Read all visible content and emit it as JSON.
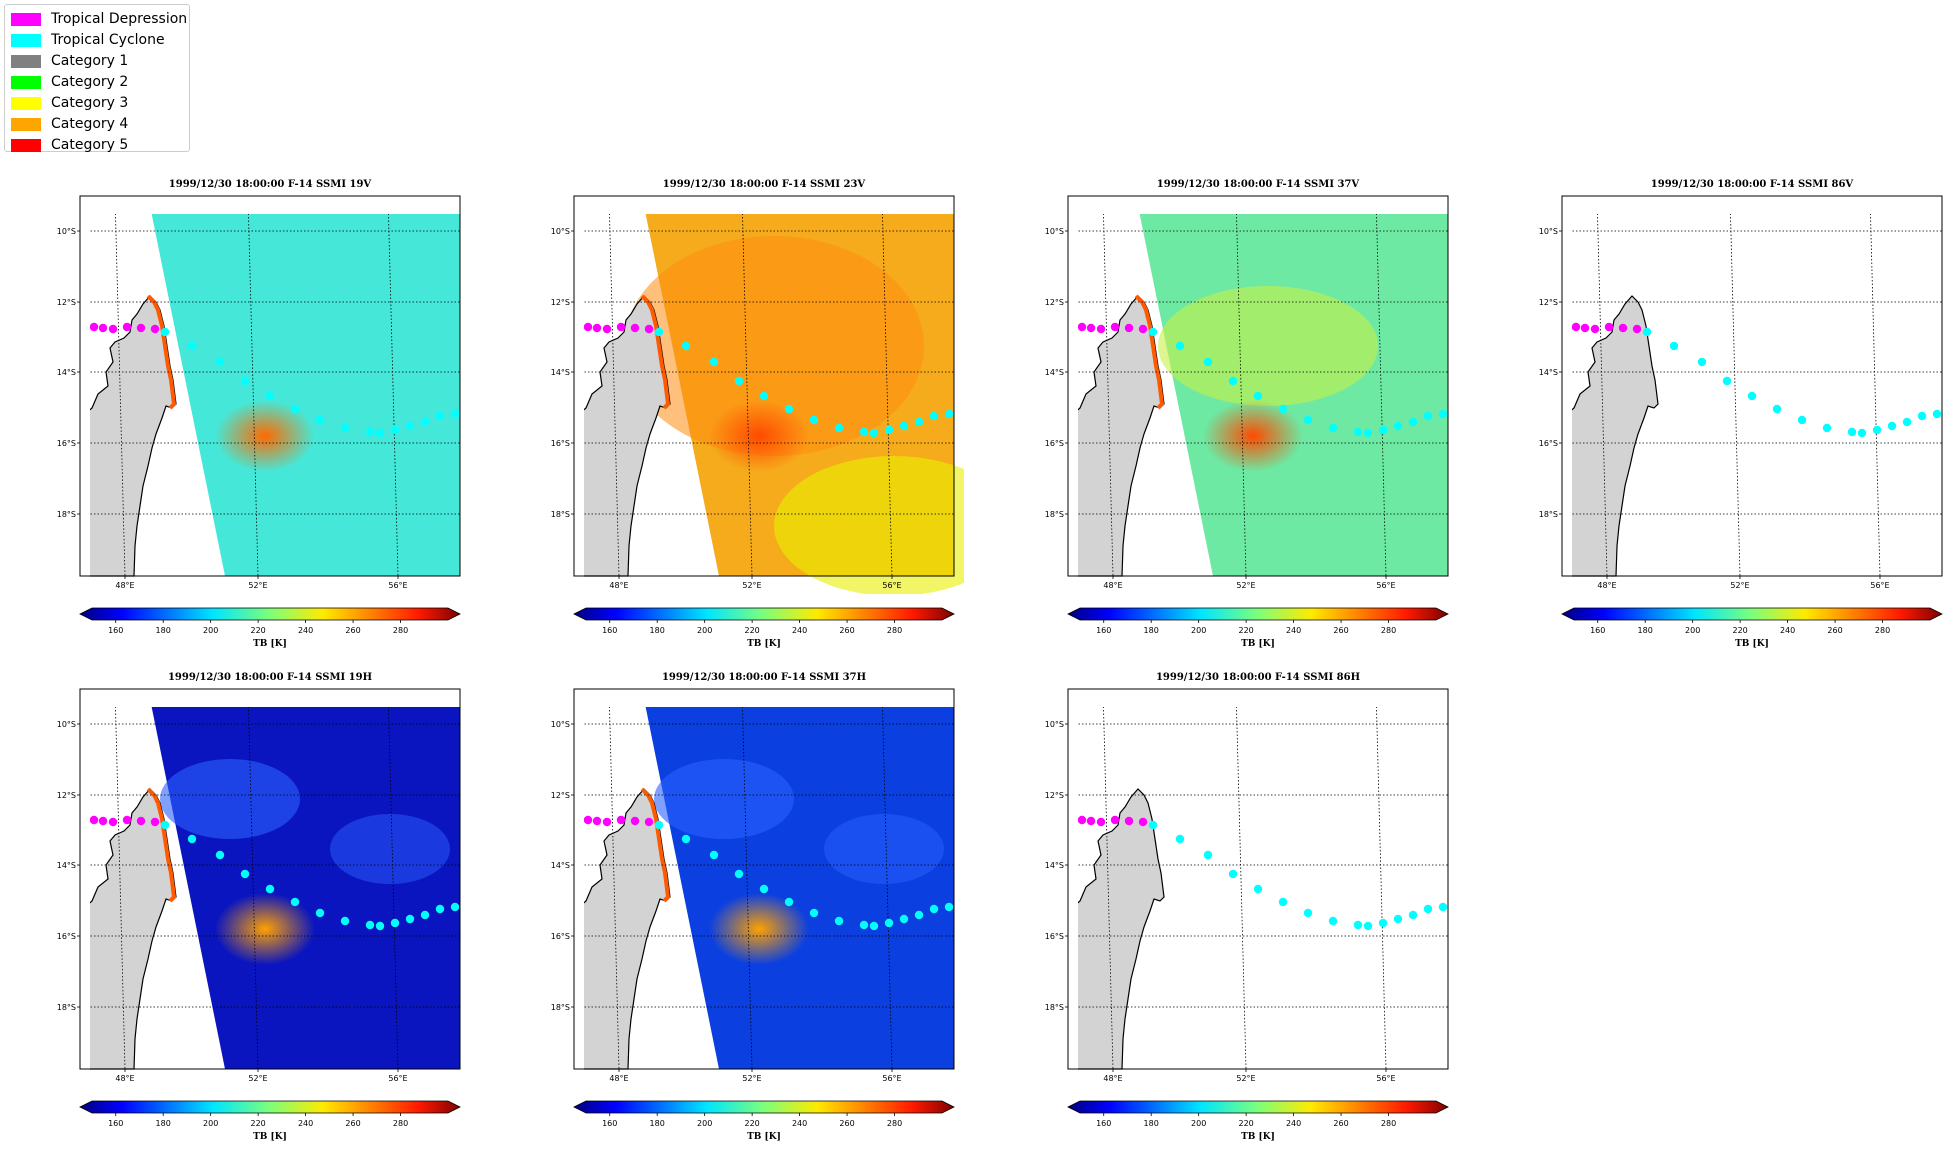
{
  "legend": {
    "items": [
      {
        "label": "Tropical Depression",
        "color": "#ff00ff"
      },
      {
        "label": "Tropical Cyclone",
        "color": "#00ffff"
      },
      {
        "label": "Category 1",
        "color": "#808080"
      },
      {
        "label": "Category 2",
        "color": "#00ff00"
      },
      {
        "label": "Category 3",
        "color": "#ffff00"
      },
      {
        "label": "Category 4",
        "color": "#ffa500"
      },
      {
        "label": "Category 5",
        "color": "#ff0000"
      }
    ]
  },
  "lat_ticks": [
    "10°S",
    "12°S",
    "14°S",
    "16°S",
    "18°S"
  ],
  "lon_ticks": [
    "48°E",
    "52°E",
    "56°E"
  ],
  "colorbar": {
    "ticks": [
      "160",
      "180",
      "200",
      "220",
      "240",
      "260",
      "280"
    ],
    "label": "TB [K]",
    "range": [
      150,
      300
    ]
  },
  "panels": [
    {
      "title": "1999/12/30 18:00:00  F-14 SSMI 19V",
      "field": "c19v"
    },
    {
      "title": "1999/12/30 18:00:00  F-14 SSMI 23V",
      "field": "c23v"
    },
    {
      "title": "1999/12/30 18:00:00  F-14 SSMI 37V",
      "field": "c37v"
    },
    {
      "title": "1999/12/30 18:00:00  F-14 SSMI 86V",
      "field": "none"
    },
    {
      "title": "1999/12/30 18:00:00  F-14 SSMI 19H",
      "field": "c19h"
    },
    {
      "title": "1999/12/30 18:00:00  F-14 SSMI 37H",
      "field": "c37h"
    },
    {
      "title": "1999/12/30 18:00:00  F-14 SSMI 86H",
      "field": "none"
    }
  ],
  "colors": {
    "land": "#d3d3d3",
    "track_depression": "#ff00ff",
    "track_cyclone": "#00ffff",
    "c19v": "#45e8d8",
    "c23v": "#f5ab1b",
    "c37v": "#6de9a3",
    "c19h": "#0a15bf",
    "c37h": "#0b3fe0"
  }
}
